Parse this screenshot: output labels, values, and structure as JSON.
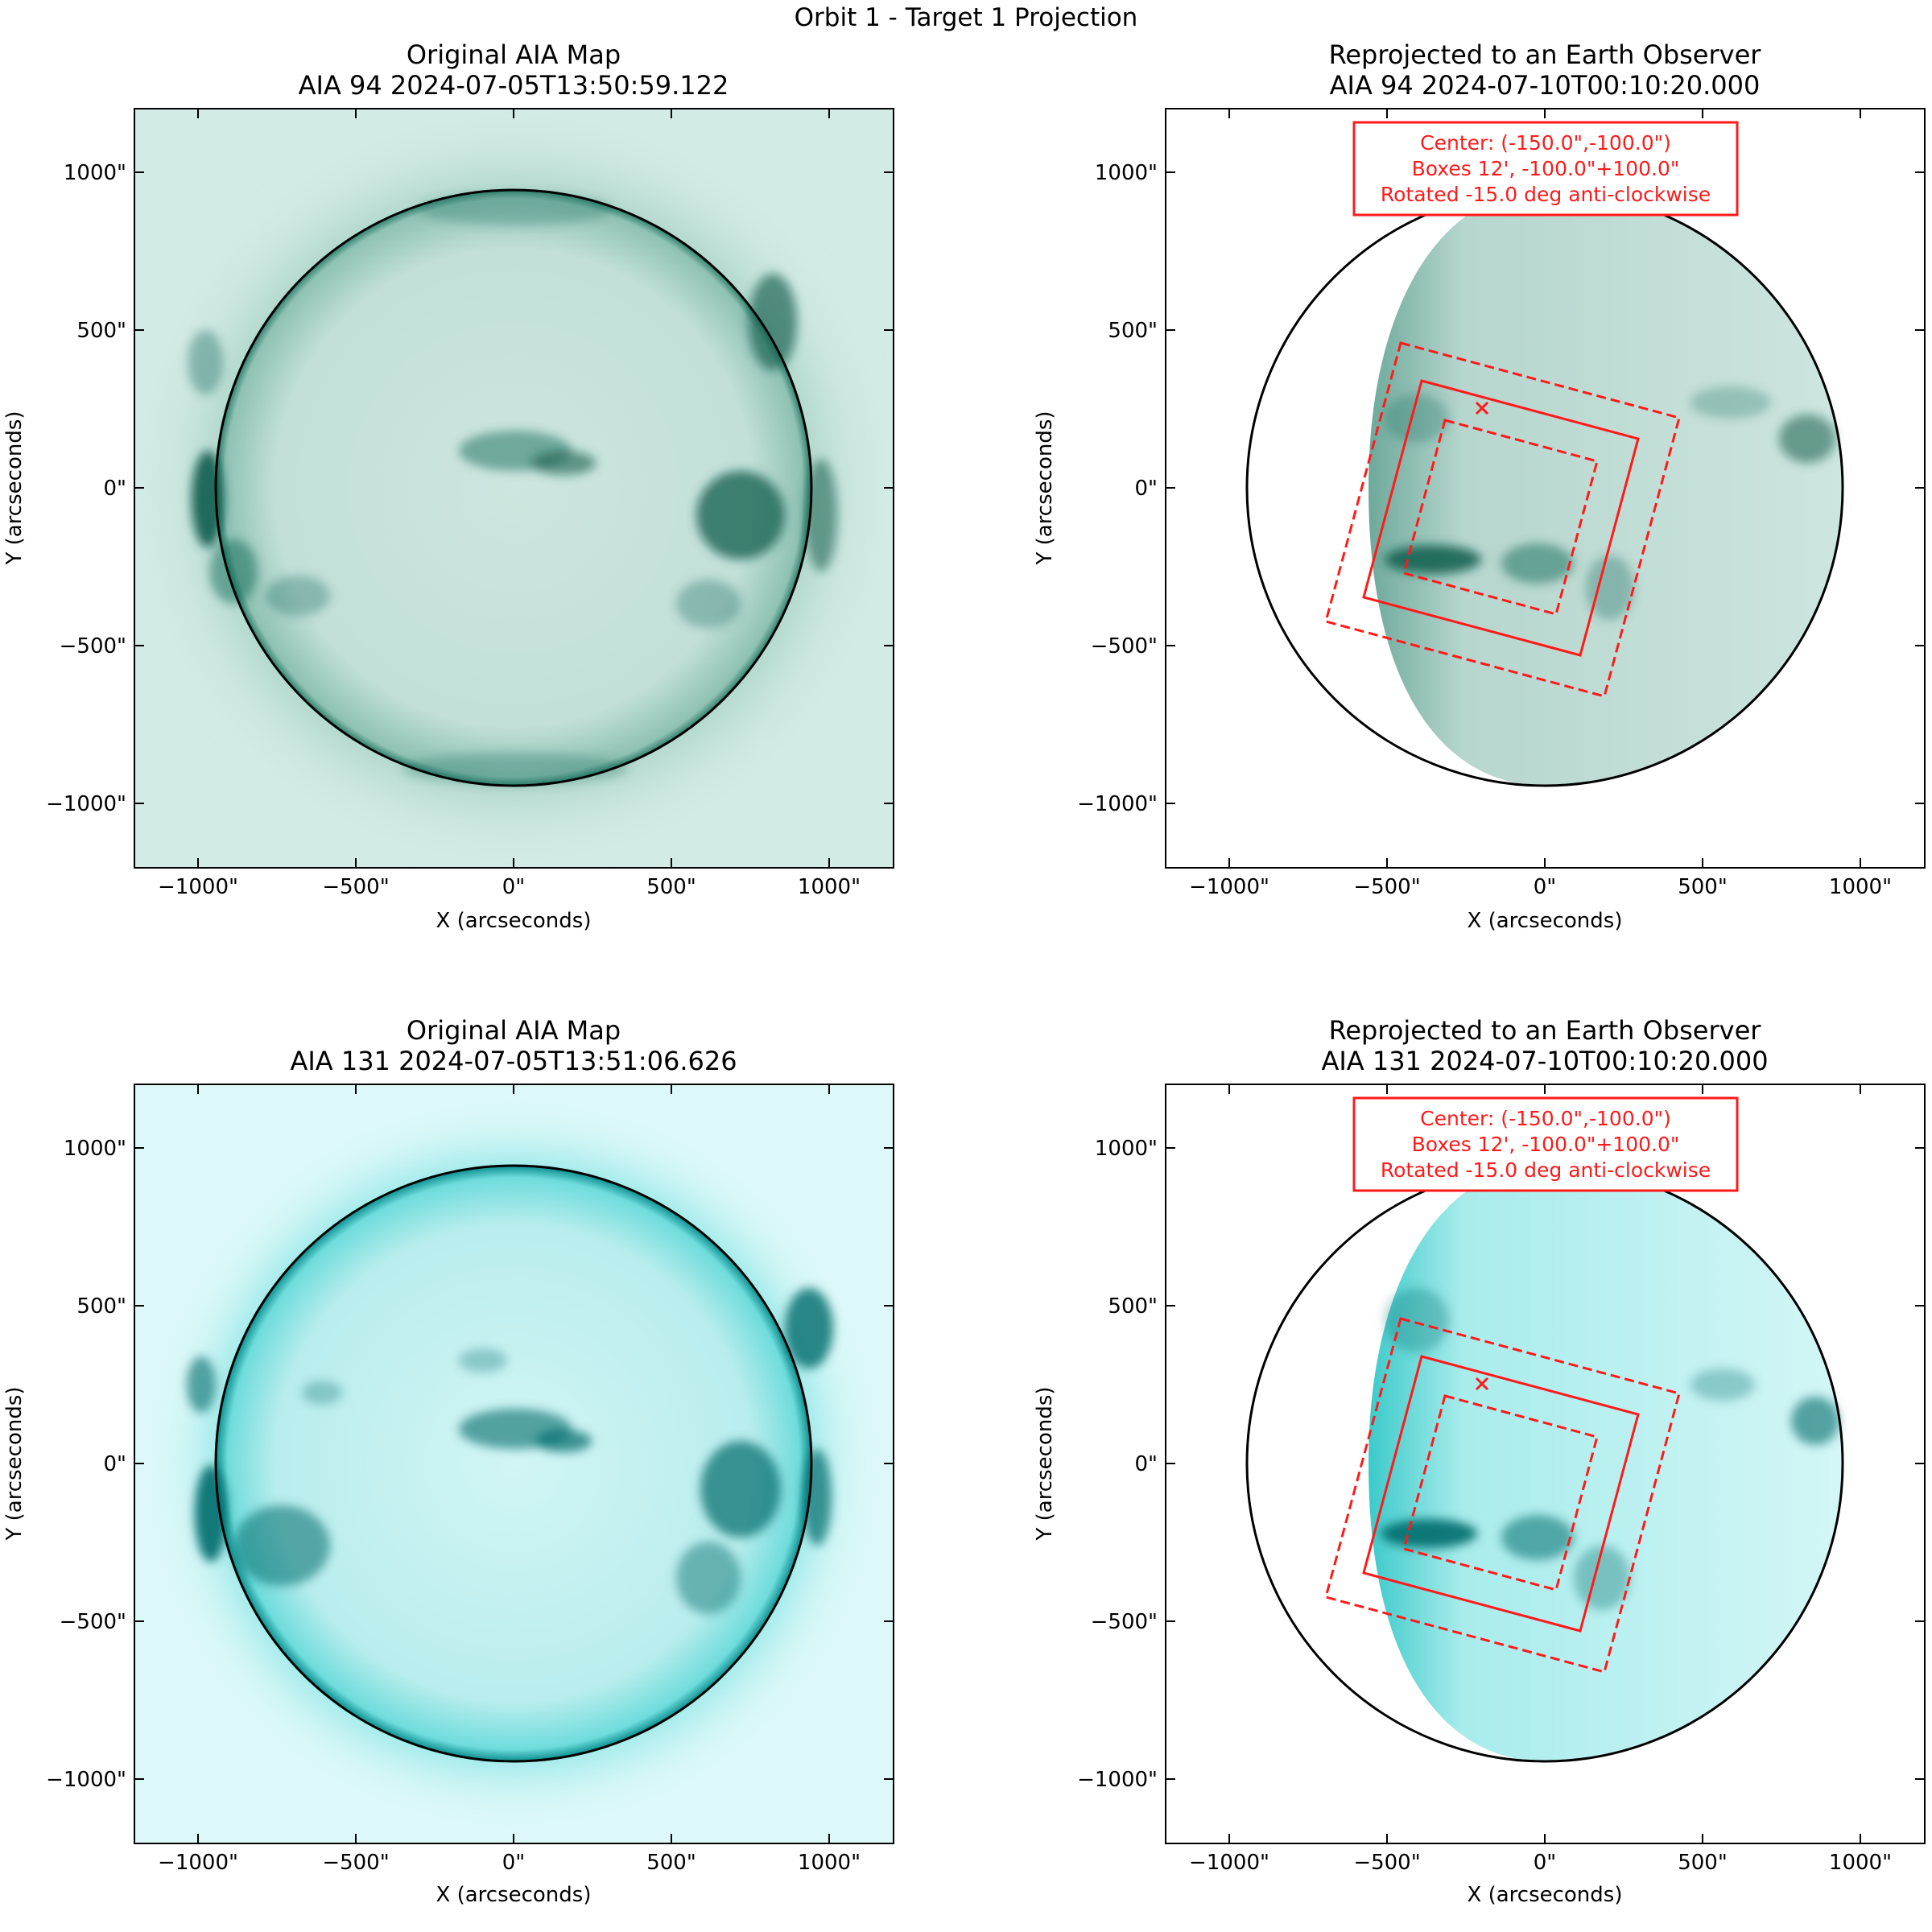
{
  "figure": {
    "suptitle": "Orbit 1 - Target 1 Projection",
    "colors": {
      "annotation": "#ff1a1a",
      "limb": "#000000"
    }
  },
  "panels": [
    {
      "title1": "Original AIA Map",
      "title2": "AIA 94 2024-07-05T13:50:59.122",
      "xlabel": "X (arcseconds)",
      "ylabel": "Y (arcseconds)",
      "xticks": [
        "−1000\"",
        "−500\"",
        "0\"",
        "500\"",
        "1000\""
      ],
      "yticks": [
        "1000\"",
        "500\"",
        "0\"",
        "−500\"",
        "−1000\""
      ],
      "image": "AIA 94 full disk",
      "colors": {
        "bg": "#d2ebe4",
        "disk": "#c3e0d8",
        "feature": "#0d5d4c",
        "limb": "#1f7a66"
      }
    },
    {
      "title1": "Reprojected to an Earth Observer",
      "title2": "AIA 94 2024-07-10T00:10:20.000",
      "xlabel": "X (arcseconds)",
      "ylabel": "Y (arcseconds)",
      "xticks": [
        "−1000\"",
        "−500\"",
        "0\"",
        "500\"",
        "1000\""
      ],
      "yticks": [
        "1000\"",
        "500\"",
        "0\"",
        "−500\"",
        "−1000\""
      ],
      "image": "AIA 94 reprojected disk",
      "annotation": [
        "Center: (-150.0\",-100.0\")",
        "Boxes 12', -100.0\"+100.0\"",
        "Rotated -15.0 deg anti-clockwise"
      ],
      "colors": {
        "disk": "#b7d7cf",
        "feature": "#0d5d4c"
      }
    },
    {
      "title1": "Original AIA Map",
      "title2": "AIA 131 2024-07-05T13:51:06.626",
      "xlabel": "X (arcseconds)",
      "ylabel": "Y (arcseconds)",
      "xticks": [
        "−1000\"",
        "−500\"",
        "0\"",
        "500\"",
        "1000\""
      ],
      "yticks": [
        "1000\"",
        "500\"",
        "0\"",
        "−500\"",
        "−1000\""
      ],
      "image": "AIA 131 full disk",
      "colors": {
        "bg": "#dcf8f8",
        "disk": "#c8f1f1",
        "feature": "#006b6b",
        "limb": "#009c9c"
      }
    },
    {
      "title1": "Reprojected to an Earth Observer",
      "title2": "AIA 131 2024-07-10T00:10:20.000",
      "xlabel": "X (arcseconds)",
      "ylabel": "Y (arcseconds)",
      "xticks": [
        "−1000\"",
        "−500\"",
        "0\"",
        "500\"",
        "1000\""
      ],
      "yticks": [
        "1000\"",
        "500\"",
        "0\"",
        "−500\"",
        "−1000\""
      ],
      "image": "AIA 131 reprojected disk",
      "annotation": [
        "Center: (-150.0\",-100.0\")",
        "Boxes 12', -100.0\"+100.0\"",
        "Rotated -15.0 deg anti-clockwise"
      ],
      "colors": {
        "disk": "#bdeeee",
        "feature": "#006b6b"
      }
    }
  ]
}
